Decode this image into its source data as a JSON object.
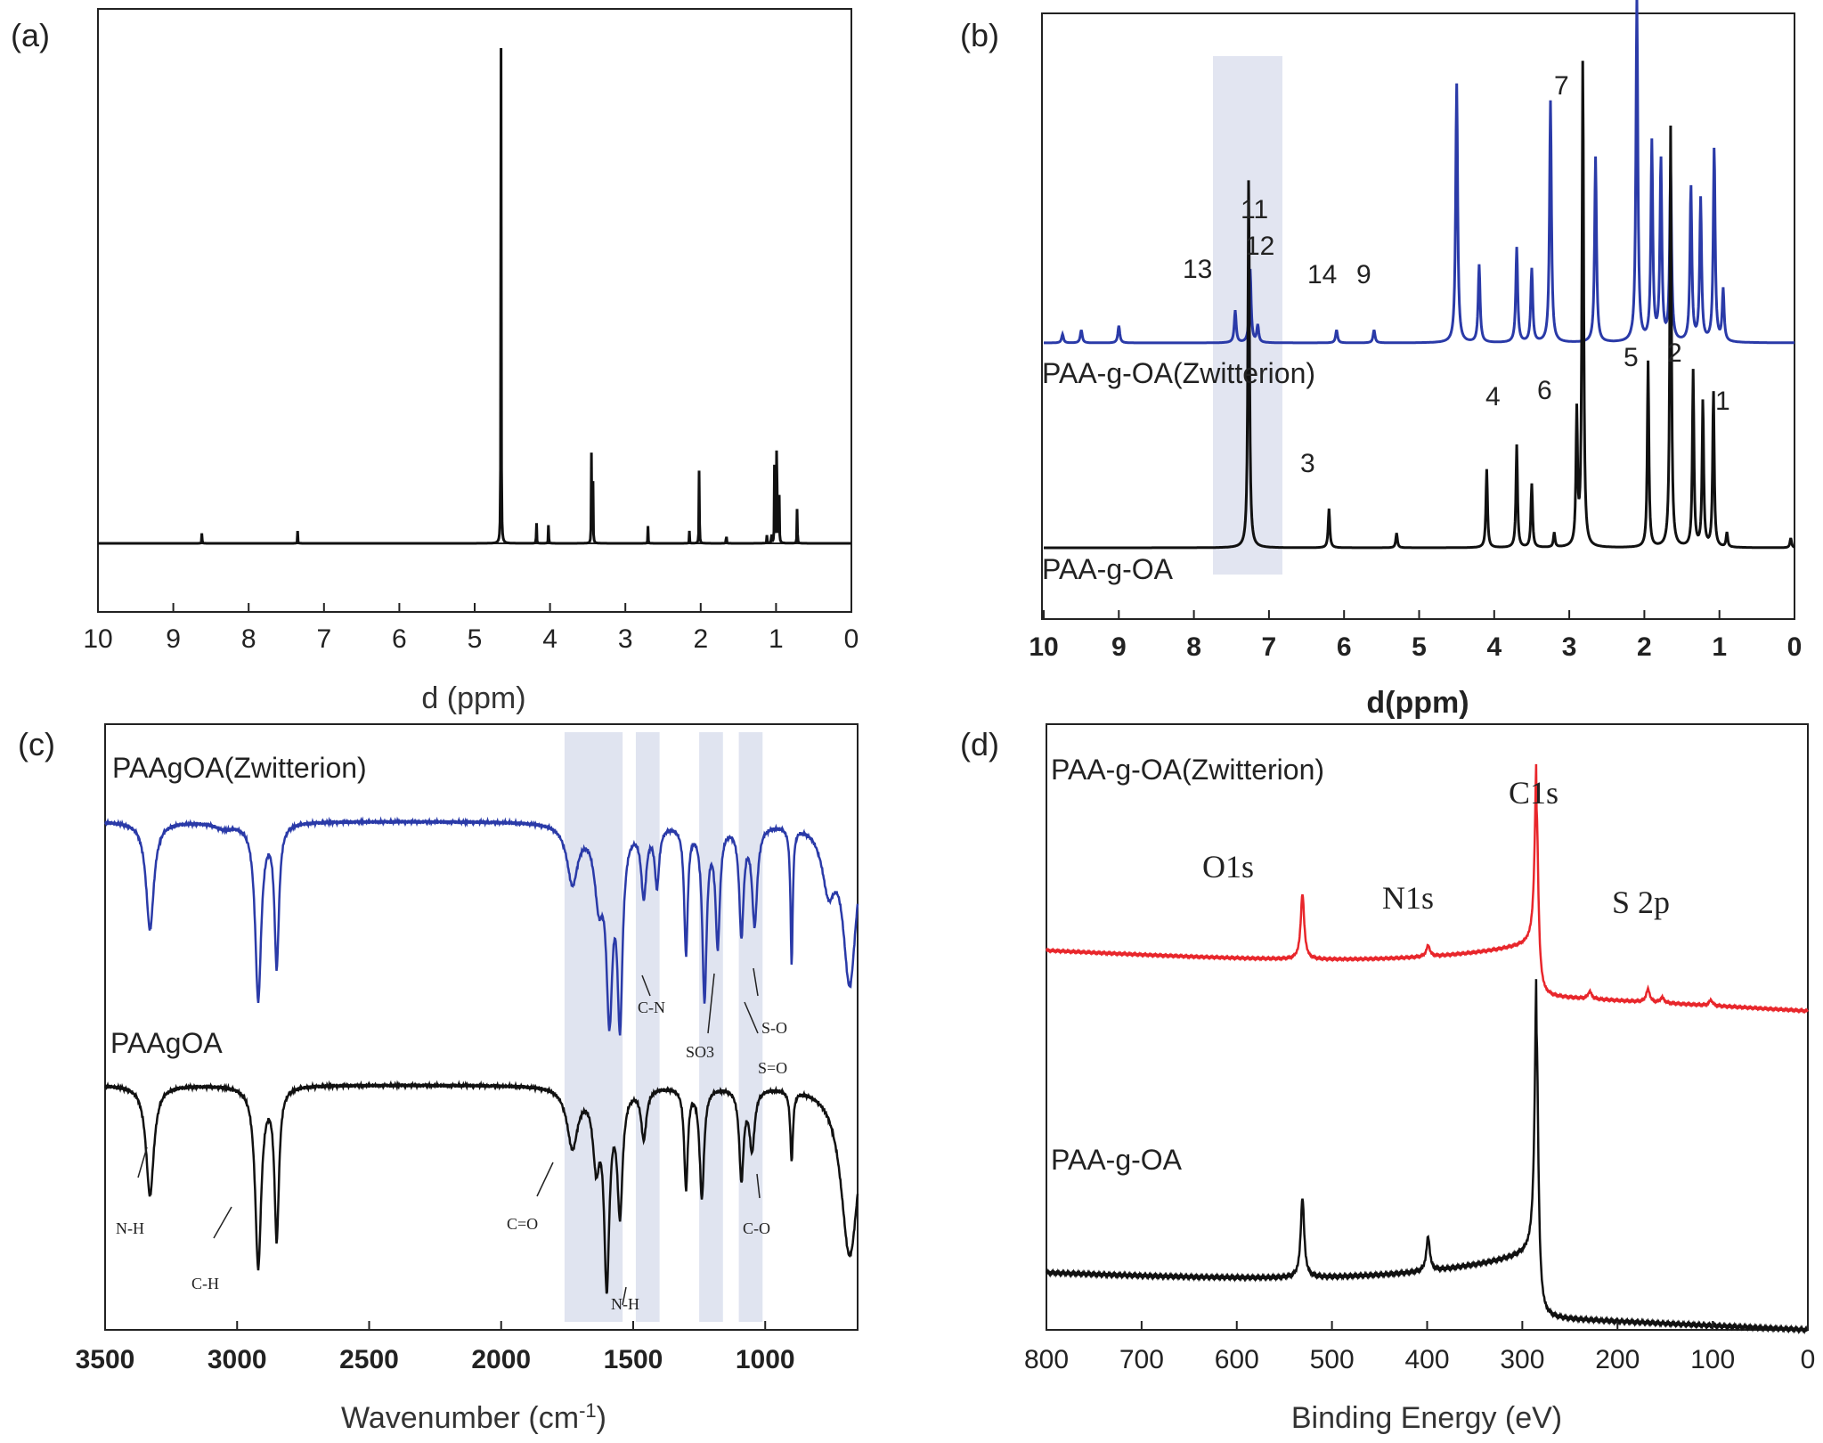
{
  "colors": {
    "black": "#111111",
    "blue": "#2a3aa8",
    "red": "#e8262b",
    "shade": "#dde1ee",
    "axis": "#222222"
  },
  "panels": {
    "a": {
      "label": "(a)"
    },
    "b": {
      "label": "(b)"
    },
    "c": {
      "label": "(c)"
    },
    "d": {
      "label": "(d)"
    }
  },
  "chart_data": [
    {
      "panel": "(a)",
      "type": "line",
      "xlabel": "d (ppm)",
      "xlim": [
        10,
        0
      ],
      "x_ticks": [
        "10",
        "9",
        "8",
        "7",
        "6",
        "5",
        "4",
        "3",
        "2",
        "1",
        "0"
      ],
      "series": [
        {
          "peaks": [
            {
              "x": 8.62,
              "h": 0.025
            },
            {
              "x": 7.35,
              "h": 0.025
            },
            {
              "x": 4.65,
              "h": 1.0
            },
            {
              "x": 4.18,
              "h": 0.05
            },
            {
              "x": 4.02,
              "h": 0.045
            },
            {
              "x": 3.45,
              "h": 0.18
            },
            {
              "x": 3.43,
              "h": 0.15
            },
            {
              "x": 2.7,
              "h": 0.035
            },
            {
              "x": 2.15,
              "h": 0.025
            },
            {
              "x": 2.02,
              "h": 0.18
            },
            {
              "x": 1.66,
              "h": 0.025
            },
            {
              "x": 1.12,
              "h": 0.02
            },
            {
              "x": 1.06,
              "h": 0.03
            },
            {
              "x": 1.02,
              "h": 0.19
            },
            {
              "x": 0.99,
              "h": 0.35
            },
            {
              "x": 0.96,
              "h": 0.18
            },
            {
              "x": 0.72,
              "h": 0.085
            }
          ]
        }
      ]
    },
    {
      "panel": "(b)",
      "type": "line",
      "xlabel": "d(ppm)",
      "xlim": [
        10,
        0
      ],
      "x_ticks": [
        "10",
        "9",
        "8",
        "7",
        "6",
        "5",
        "4",
        "3",
        "2",
        "1",
        "0"
      ],
      "shaded_region": [
        7.75,
        6.85
      ],
      "series": [
        {
          "name": "PAA-g-OA(Zwitterion)",
          "peaks": [
            {
              "x": 9.75,
              "h": 0.02
            },
            {
              "x": 9.5,
              "h": 0.03
            },
            {
              "x": 9.0,
              "h": 0.04
            },
            {
              "x": 7.45,
              "h": 0.075
            },
            {
              "x": 7.25,
              "h": 0.17
            },
            {
              "x": 7.15,
              "h": 0.04
            },
            {
              "x": 6.1,
              "h": 0.03
            },
            {
              "x": 5.6,
              "h": 0.03
            },
            {
              "x": 4.5,
              "h": 0.6
            },
            {
              "x": 4.2,
              "h": 0.18
            },
            {
              "x": 3.7,
              "h": 0.22
            },
            {
              "x": 3.5,
              "h": 0.17
            },
            {
              "x": 3.25,
              "h": 0.56
            },
            {
              "x": 2.65,
              "h": 0.43
            },
            {
              "x": 2.1,
              "h": 0.8
            },
            {
              "x": 1.9,
              "h": 0.46
            },
            {
              "x": 1.78,
              "h": 0.42
            },
            {
              "x": 1.65,
              "h": 0.4
            },
            {
              "x": 1.38,
              "h": 0.36
            },
            {
              "x": 1.25,
              "h": 0.33
            },
            {
              "x": 1.07,
              "h": 0.45
            },
            {
              "x": 0.95,
              "h": 0.12
            }
          ]
        },
        {
          "name": "PAA-g-OA",
          "peaks": [
            {
              "x": 7.27,
              "h": 0.76
            },
            {
              "x": 6.2,
              "h": 0.08
            },
            {
              "x": 5.3,
              "h": 0.03
            },
            {
              "x": 4.1,
              "h": 0.16
            },
            {
              "x": 3.7,
              "h": 0.21
            },
            {
              "x": 3.5,
              "h": 0.13
            },
            {
              "x": 3.2,
              "h": 0.03
            },
            {
              "x": 2.9,
              "h": 0.27
            },
            {
              "x": 2.82,
              "h": 1.0
            },
            {
              "x": 1.95,
              "h": 0.38
            },
            {
              "x": 1.65,
              "h": 0.86
            },
            {
              "x": 1.35,
              "h": 0.36
            },
            {
              "x": 1.22,
              "h": 0.3
            },
            {
              "x": 1.08,
              "h": 0.32
            },
            {
              "x": 0.9,
              "h": 0.03
            },
            {
              "x": 0.05,
              "h": 0.02
            }
          ]
        }
      ],
      "peak_labels": [
        "13",
        "11",
        "12",
        "14",
        "9",
        "7",
        "4",
        "6",
        "5",
        "2",
        "1",
        "3"
      ]
    },
    {
      "panel": "(c)",
      "type": "line",
      "xlabel": "Wavenumber (cm-1)",
      "xlabel_main": "Wavenumber (cm",
      "xlabel_sup": "-1",
      "xlabel_end": ")",
      "xlim": [
        3500,
        650
      ],
      "x_ticks": [
        3500,
        3000,
        2500,
        2000,
        1500,
        1000
      ],
      "shaded_regions": [
        [
          1760,
          1540
        ],
        [
          1490,
          1400
        ],
        [
          1250,
          1160
        ],
        [
          1100,
          1010
        ]
      ],
      "series": [
        {
          "name": "PAAgOA(Zwitterion)",
          "dips": [
            {
              "x": 3330,
              "d": 0.55,
              "w": 18
            },
            {
              "x": 3050,
              "d": 0.03,
              "w": 40
            },
            {
              "x": 2920,
              "d": 0.9,
              "w": 14
            },
            {
              "x": 2850,
              "d": 0.72,
              "w": 10
            },
            {
              "x": 1730,
              "d": 0.3,
              "w": 25
            },
            {
              "x": 1630,
              "d": 0.35,
              "w": 20
            },
            {
              "x": 1590,
              "d": 0.9,
              "w": 14
            },
            {
              "x": 1550,
              "d": 0.95,
              "w": 12
            },
            {
              "x": 1460,
              "d": 0.35,
              "w": 12
            },
            {
              "x": 1410,
              "d": 0.3,
              "w": 10
            },
            {
              "x": 1300,
              "d": 0.65,
              "w": 8
            },
            {
              "x": 1230,
              "d": 0.88,
              "w": 10
            },
            {
              "x": 1180,
              "d": 0.6,
              "w": 10
            },
            {
              "x": 1090,
              "d": 0.55,
              "w": 10
            },
            {
              "x": 1040,
              "d": 0.5,
              "w": 12
            },
            {
              "x": 900,
              "d": 0.7,
              "w": 5
            },
            {
              "x": 760,
              "d": 0.3,
              "w": 30
            },
            {
              "x": 680,
              "d": 0.8,
              "w": 30
            }
          ]
        },
        {
          "name": "PAAgOA",
          "dips": [
            {
              "x": 3330,
              "d": 0.55,
              "w": 18
            },
            {
              "x": 2920,
              "d": 0.9,
              "w": 14
            },
            {
              "x": 2850,
              "d": 0.75,
              "w": 10
            },
            {
              "x": 1730,
              "d": 0.3,
              "w": 25
            },
            {
              "x": 1640,
              "d": 0.35,
              "w": 15
            },
            {
              "x": 1600,
              "d": 0.95,
              "w": 12
            },
            {
              "x": 1550,
              "d": 0.6,
              "w": 12
            },
            {
              "x": 1460,
              "d": 0.25,
              "w": 12
            },
            {
              "x": 1300,
              "d": 0.5,
              "w": 8
            },
            {
              "x": 1240,
              "d": 0.55,
              "w": 10
            },
            {
              "x": 1090,
              "d": 0.45,
              "w": 10
            },
            {
              "x": 1050,
              "d": 0.3,
              "w": 12
            },
            {
              "x": 900,
              "d": 0.35,
              "w": 6
            },
            {
              "x": 680,
              "d": 0.85,
              "w": 40
            }
          ]
        }
      ],
      "annotations": [
        "C-N",
        "SO3",
        "S-O",
        "S=O",
        "N-H",
        "C-H",
        "C=O",
        "C-O",
        "N-H"
      ]
    },
    {
      "panel": "(d)",
      "type": "line",
      "xlabel": "Binding Energy (eV)",
      "xlim": [
        800,
        0
      ],
      "x_ticks": [
        800,
        700,
        600,
        500,
        400,
        300,
        200,
        100,
        0
      ],
      "series": [
        {
          "name": "PAA-g-OA(Zwitterion)",
          "peaks": [
            {
              "x": 531,
              "h": 0.35
            },
            {
              "x": 399,
              "h": 0.06
            },
            {
              "x": 285,
              "h": 1.0
            },
            {
              "x": 229,
              "h": 0.04
            },
            {
              "x": 168,
              "h": 0.07
            },
            {
              "x": 153,
              "h": 0.03
            },
            {
              "x": 102,
              "h": 0.03
            }
          ]
        },
        {
          "name": "PAA-g-OA",
          "peaks": [
            {
              "x": 531,
              "h": 0.28
            },
            {
              "x": 399,
              "h": 0.12
            },
            {
              "x": 285,
              "h": 1.0
            }
          ]
        }
      ],
      "peak_labels": [
        "O1s",
        "N1s",
        "C1s",
        "S 2p"
      ]
    }
  ]
}
